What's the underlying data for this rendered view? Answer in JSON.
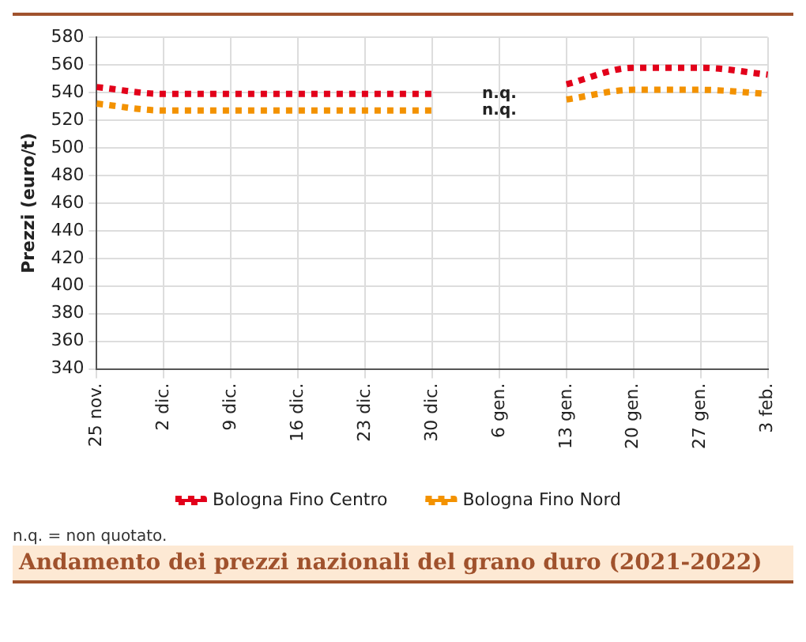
{
  "chart_data": {
    "type": "line",
    "title": "Andamento dei prezzi nazionali del grano duro (2021-2022)",
    "ylabel": "Prezzi (euro/t)",
    "categories": [
      "25 nov.",
      "2 dic.",
      "9 dic.",
      "16 dic.",
      "23 dic.",
      "30 dic.",
      "6 gen.",
      "13 gen.",
      "20 gen.",
      "27 gen.",
      "3 feb."
    ],
    "series": [
      {
        "name": "Bologna Fino Centro",
        "color": "#e2001a",
        "values": [
          544,
          539,
          539,
          539,
          539,
          539,
          null,
          546,
          558,
          558,
          553
        ]
      },
      {
        "name": "Bologna Fino Nord",
        "color": "#f39200",
        "values": [
          532,
          527,
          527,
          527,
          527,
          527,
          null,
          535,
          542,
          542,
          539
        ]
      }
    ],
    "ylim": [
      340,
      580
    ],
    "yticks": [
      340,
      360,
      380,
      400,
      420,
      440,
      460,
      480,
      500,
      520,
      540,
      560,
      580
    ],
    "grid": true,
    "legend": "bottom",
    "line_style": "dotted",
    "marker": "none",
    "annotations": [
      "n.q.",
      "n.q.",
      "n.q. = non quotato."
    ]
  }
}
